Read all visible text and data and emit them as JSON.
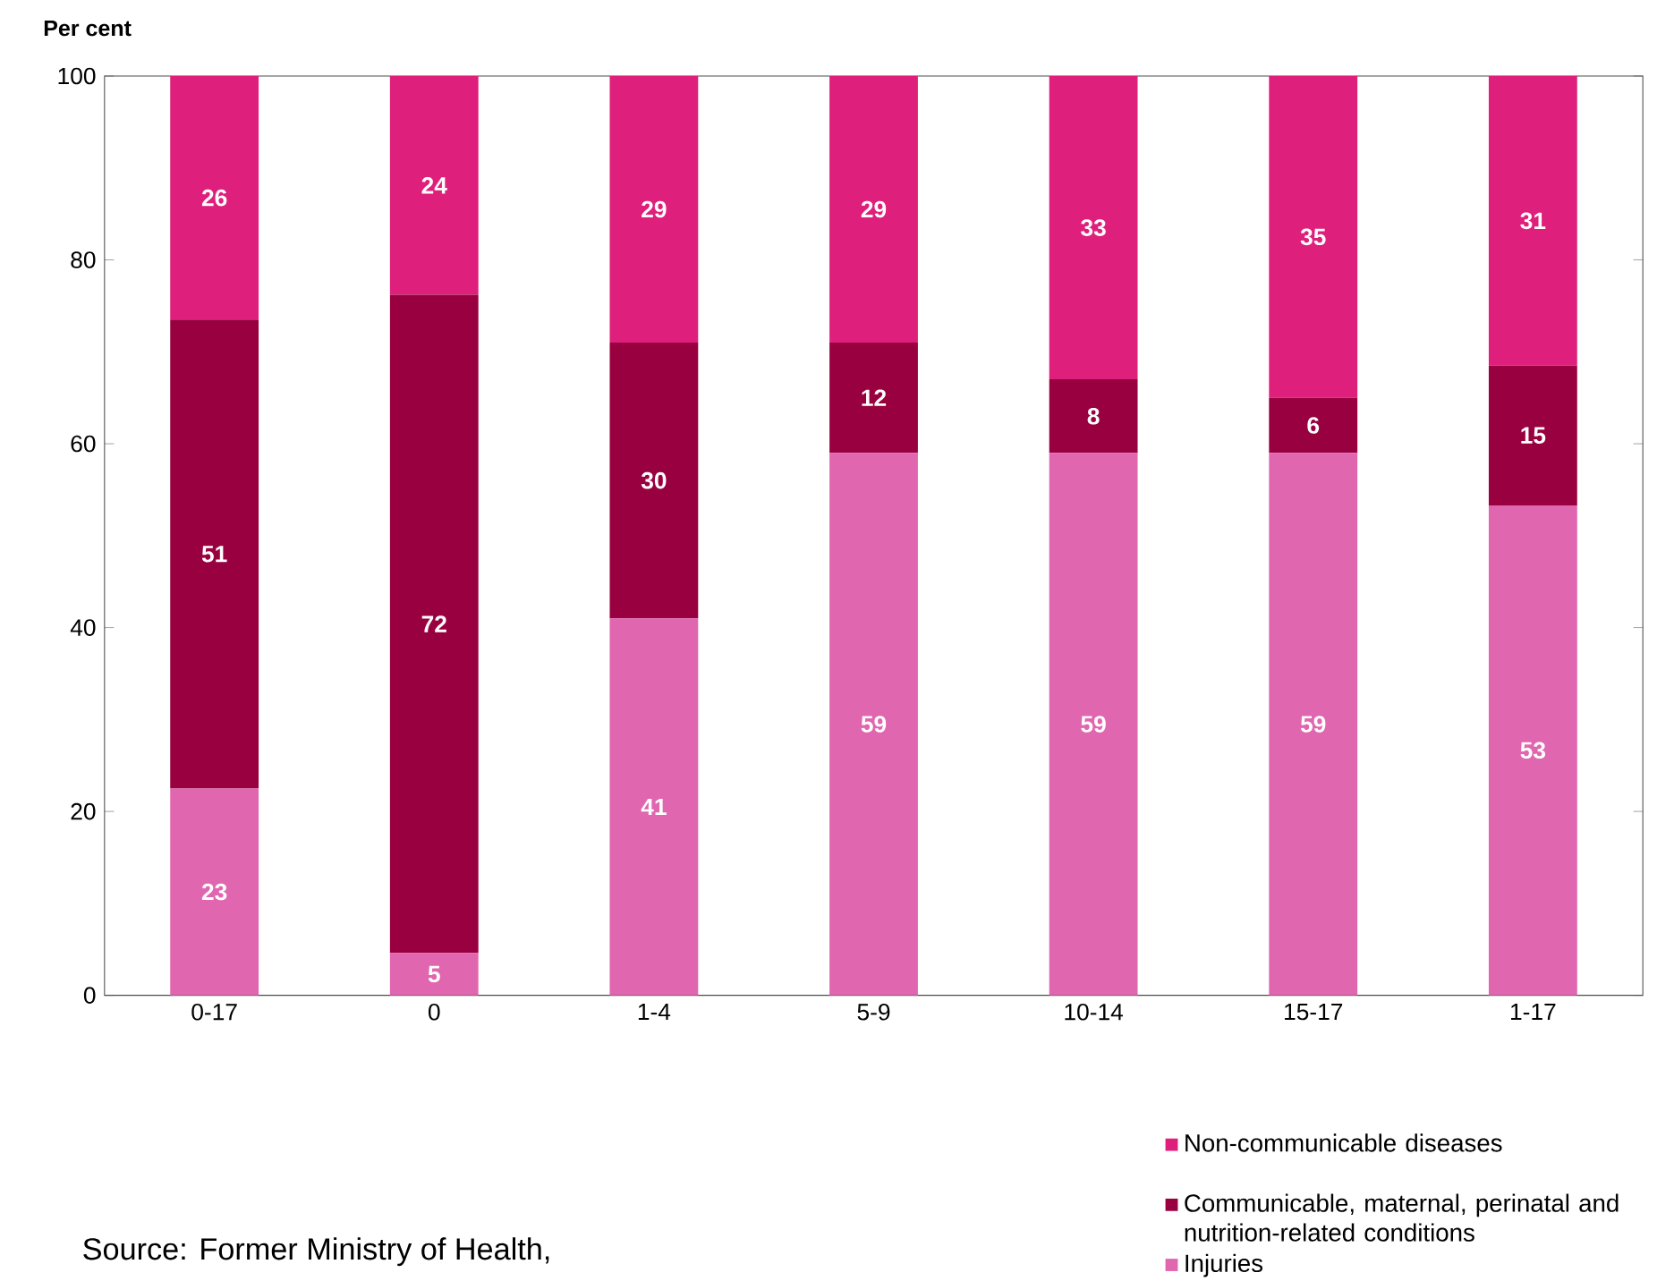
{
  "chart_data": {
    "type": "bar",
    "stacked": true,
    "ylabel": "Per cent",
    "categories": [
      "0-17",
      "0",
      "1-4",
      "5-9",
      "10-14",
      "15-17",
      "1-17"
    ],
    "series": [
      {
        "name": "Injuries",
        "color": "#e066b0",
        "values": [
          22.5,
          4.6,
          41,
          59,
          59,
          59,
          53.3
        ],
        "value_labels": [
          "23",
          "5",
          "41",
          "59",
          "59",
          "59",
          "53"
        ]
      },
      {
        "name": "Communicable, maternal, perinatal and nutrition-related conditions",
        "color": "#990040",
        "values": [
          51,
          71.6,
          30,
          12,
          8,
          6,
          15.2
        ],
        "value_labels": [
          "51",
          "72",
          "30",
          "12",
          "8",
          "6",
          "15"
        ]
      },
      {
        "name": "Non-communicable diseases",
        "color": "#de1f7b",
        "values": [
          26.5,
          23.8,
          29,
          29,
          33,
          35,
          31.5
        ],
        "value_labels": [
          "26",
          "24",
          "29",
          "29",
          "33",
          "35",
          "31"
        ]
      }
    ],
    "ylim": [
      0,
      100
    ],
    "yticks": [
      0,
      20,
      40,
      60,
      80,
      100
    ],
    "legend": "bottom right",
    "annotations": [
      "Source: Former Ministry of Health,"
    ]
  }
}
